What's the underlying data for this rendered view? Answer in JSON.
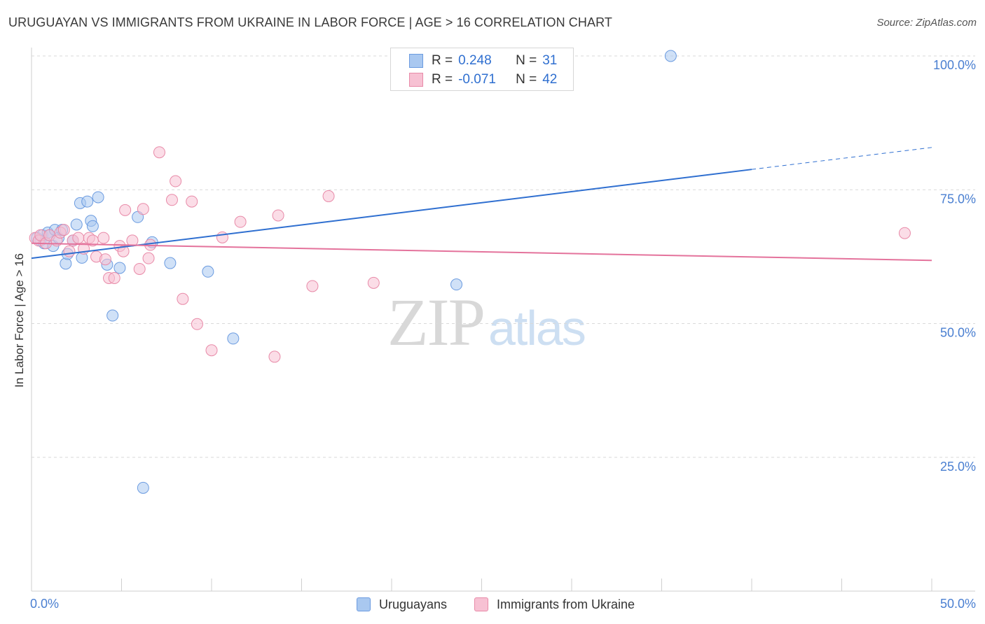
{
  "header": {
    "title": "URUGUAYAN VS IMMIGRANTS FROM UKRAINE IN LABOR FORCE | AGE > 16 CORRELATION CHART",
    "source": "Source: ZipAtlas.com"
  },
  "watermark": {
    "zip": "ZIP",
    "atlas": "atlas"
  },
  "legend": {
    "rows": [
      {
        "r_label": "R =",
        "r_value": "0.248",
        "n_label": "N =",
        "n_value": "31",
        "color": "#a9c8f0",
        "stroke": "#6b9be0"
      },
      {
        "r_label": "R =",
        "r_value": "-0.071",
        "n_label": "N =",
        "n_value": "42",
        "color": "#f7c1d3",
        "stroke": "#e88aa8"
      }
    ]
  },
  "bottom_legend": {
    "items": [
      {
        "label": "Uruguayans",
        "color": "#a9c8f0",
        "stroke": "#6b9be0"
      },
      {
        "label": "Immigrants from Ukraine",
        "color": "#f7c1d3",
        "stroke": "#e88aa8"
      }
    ]
  },
  "chart_data": {
    "type": "scatter",
    "title": "URUGUAYAN VS IMMIGRANTS FROM UKRAINE IN LABOR FORCE | AGE > 16 CORRELATION CHART",
    "xlabel": "",
    "ylabel": "In Labor Force | Age > 16",
    "xlim": [
      0,
      50
    ],
    "ylim": [
      0,
      102
    ],
    "x_tick_labels": [
      "0.0%",
      "50.0%"
    ],
    "y_tick_values": [
      25,
      50,
      75,
      100
    ],
    "y_tick_labels": [
      "25.0%",
      "50.0%",
      "75.0%",
      "100.0%"
    ],
    "grid": true,
    "series": [
      {
        "name": "Uruguayans",
        "color": "#6b9be0",
        "fill": "#a9c8f0",
        "trend": {
          "x0": 0,
          "y0": 62.2,
          "x1": 40,
          "y1": 78.8,
          "dash_to_x": 50,
          "dash_to_y": 82.9,
          "color": "#2f6fd0"
        },
        "points": [
          [
            0.3,
            66.0
          ],
          [
            0.5,
            65.5
          ],
          [
            0.6,
            66.5
          ],
          [
            0.7,
            65.0
          ],
          [
            0.9,
            67.0
          ],
          [
            1.0,
            66.5
          ],
          [
            1.2,
            64.5
          ],
          [
            1.3,
            67.5
          ],
          [
            1.5,
            66.0
          ],
          [
            1.7,
            67.5
          ],
          [
            1.9,
            61.2
          ],
          [
            2.0,
            63.0
          ],
          [
            2.3,
            65.5
          ],
          [
            2.5,
            68.5
          ],
          [
            2.7,
            72.5
          ],
          [
            2.8,
            62.3
          ],
          [
            3.1,
            72.8
          ],
          [
            3.3,
            69.2
          ],
          [
            3.4,
            68.2
          ],
          [
            3.7,
            73.6
          ],
          [
            4.2,
            61.0
          ],
          [
            4.5,
            51.5
          ],
          [
            4.9,
            60.4
          ],
          [
            5.9,
            69.9
          ],
          [
            6.2,
            19.3
          ],
          [
            6.7,
            65.2
          ],
          [
            7.7,
            61.3
          ],
          [
            9.8,
            59.7
          ],
          [
            11.2,
            47.2
          ],
          [
            23.6,
            57.3
          ],
          [
            35.5,
            100.0
          ]
        ]
      },
      {
        "name": "Immigrants from Ukraine",
        "color": "#e88aa8",
        "fill": "#f7c1d3",
        "trend": {
          "x0": 0,
          "y0": 65.0,
          "x1": 50,
          "y1": 61.8,
          "color": "#e4739c"
        },
        "points": [
          [
            0.2,
            66.0
          ],
          [
            0.4,
            65.5
          ],
          [
            0.5,
            66.5
          ],
          [
            0.8,
            65.0
          ],
          [
            1.0,
            66.5
          ],
          [
            1.4,
            65.5
          ],
          [
            1.6,
            67.0
          ],
          [
            1.8,
            67.5
          ],
          [
            2.1,
            63.5
          ],
          [
            2.3,
            65.5
          ],
          [
            2.6,
            66.0
          ],
          [
            2.9,
            64.0
          ],
          [
            3.2,
            66.0
          ],
          [
            3.4,
            65.5
          ],
          [
            3.6,
            62.5
          ],
          [
            4.0,
            66.0
          ],
          [
            4.1,
            62.0
          ],
          [
            4.3,
            58.5
          ],
          [
            4.6,
            58.5
          ],
          [
            4.9,
            64.5
          ],
          [
            5.1,
            63.5
          ],
          [
            5.2,
            71.2
          ],
          [
            5.6,
            65.5
          ],
          [
            6.0,
            60.2
          ],
          [
            6.2,
            71.4
          ],
          [
            6.5,
            62.2
          ],
          [
            6.6,
            64.7
          ],
          [
            7.1,
            82.0
          ],
          [
            7.8,
            73.1
          ],
          [
            8.0,
            76.6
          ],
          [
            8.4,
            54.6
          ],
          [
            8.9,
            72.8
          ],
          [
            9.2,
            49.9
          ],
          [
            10.0,
            45.0
          ],
          [
            10.6,
            66.1
          ],
          [
            11.6,
            69.0
          ],
          [
            13.5,
            43.8
          ],
          [
            13.7,
            70.2
          ],
          [
            15.6,
            57.0
          ],
          [
            16.5,
            73.8
          ],
          [
            19.0,
            57.6
          ],
          [
            48.5,
            66.9
          ]
        ]
      }
    ]
  }
}
